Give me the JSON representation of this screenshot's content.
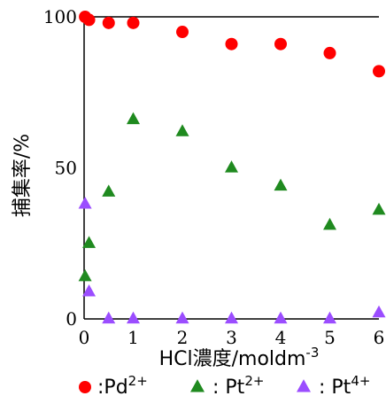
{
  "chart_data": {
    "type": "scatter",
    "xlabel": "HCl濃度/moldm",
    "xlabel_sup": "-3",
    "ylabel": "捕集率/%",
    "xlim": [
      0,
      6
    ],
    "ylim": [
      0,
      100
    ],
    "x_ticks": [
      "0",
      "1",
      "2",
      "3",
      "4",
      "5",
      "6"
    ],
    "y_ticks": [
      "0",
      "50",
      "100"
    ],
    "grid": false,
    "legend_position": "bottom",
    "series": [
      {
        "name": "Pd",
        "name_sup": "2+",
        "marker": "circle",
        "color": "#ff0000",
        "points": [
          {
            "x": 0.02,
            "y": 100
          },
          {
            "x": 0.1,
            "y": 99
          },
          {
            "x": 0.5,
            "y": 98
          },
          {
            "x": 1.0,
            "y": 98
          },
          {
            "x": 2.0,
            "y": 95
          },
          {
            "x": 3.0,
            "y": 91
          },
          {
            "x": 4.0,
            "y": 91
          },
          {
            "x": 5.0,
            "y": 88
          },
          {
            "x": 6.0,
            "y": 82
          }
        ]
      },
      {
        "name": "Pt",
        "name_sup": "2+",
        "marker": "triangle",
        "color": "#1f8a1f",
        "points": [
          {
            "x": 0.02,
            "y": 14
          },
          {
            "x": 0.1,
            "y": 25
          },
          {
            "x": 0.5,
            "y": 42
          },
          {
            "x": 1.0,
            "y": 66
          },
          {
            "x": 2.0,
            "y": 62
          },
          {
            "x": 3.0,
            "y": 50
          },
          {
            "x": 4.0,
            "y": 44
          },
          {
            "x": 5.0,
            "y": 31
          },
          {
            "x": 6.0,
            "y": 36
          }
        ]
      },
      {
        "name": "Pt",
        "name_sup": "4+",
        "marker": "triangle",
        "color": "#9b4dff",
        "points": [
          {
            "x": 0.02,
            "y": 38
          },
          {
            "x": 0.1,
            "y": 9
          },
          {
            "x": 0.5,
            "y": 0
          },
          {
            "x": 1.0,
            "y": 0
          },
          {
            "x": 2.0,
            "y": 0
          },
          {
            "x": 3.0,
            "y": 0
          },
          {
            "x": 4.0,
            "y": 0
          },
          {
            "x": 5.0,
            "y": 0
          },
          {
            "x": 6.0,
            "y": 2
          }
        ]
      }
    ]
  }
}
